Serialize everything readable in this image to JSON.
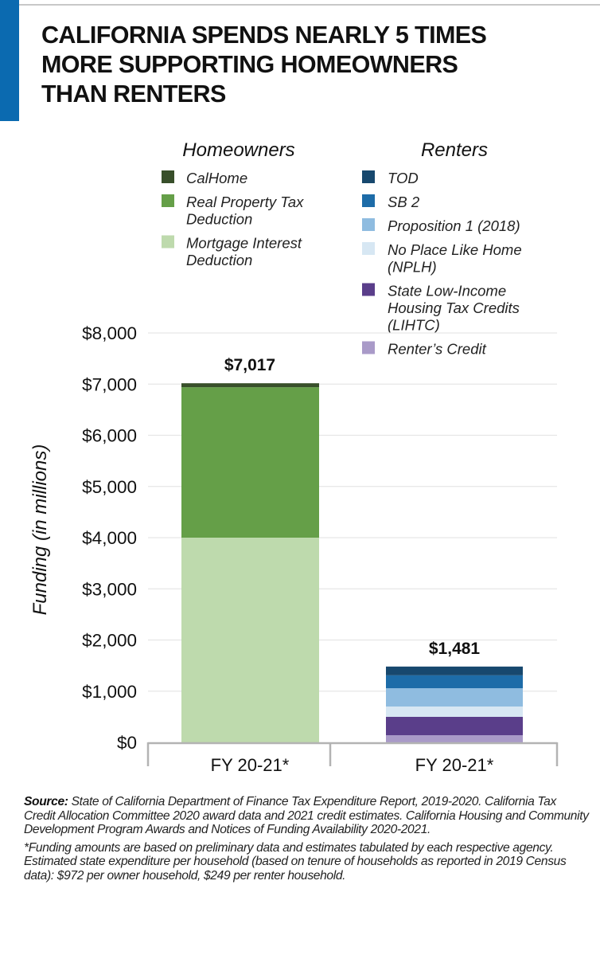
{
  "header": {
    "title_lines": [
      "CALIFORNIA SPENDS NEARLY 5 TIMES",
      "MORE SUPPORTING HOMEOWNERS",
      "THAN RENTERS"
    ],
    "accent_color": "#0b6ab0"
  },
  "chart_data": {
    "type": "bar",
    "stacked": true,
    "title": "California Spends Nearly 5 Times More Supporting Homeowners Than Renters",
    "xlabel": "",
    "ylabel": "Funding (in millions)",
    "ylim": [
      0,
      8000
    ],
    "yticks": [
      0,
      1000,
      2000,
      3000,
      4000,
      5000,
      6000,
      7000,
      8000
    ],
    "ytick_labels": [
      "$0",
      "$1,000",
      "$2,000",
      "$3,000",
      "$4,000",
      "$5,000",
      "$6,000",
      "$7,000",
      "$8,000"
    ],
    "grid": true,
    "categories": [
      "FY 20-21*",
      "FY 20-21*"
    ],
    "groups": [
      {
        "name": "Homeowners",
        "category": "FY 20-21*",
        "total": 7017,
        "total_label": "$7,017",
        "series": [
          {
            "name": "Mortgage Interest Deduction",
            "value": 4000,
            "color": "#bedaad"
          },
          {
            "name": "Real Property Tax Deduction",
            "value": 2940,
            "color": "#659f48"
          },
          {
            "name": "CalHome",
            "value": 77,
            "color": "#384f2a"
          }
        ]
      },
      {
        "name": "Renters",
        "category": "FY 20-21*",
        "total": 1481,
        "total_label": "$1,481",
        "series": [
          {
            "name": "Renter’s Credit",
            "value": 140,
            "color": "#a99ac8"
          },
          {
            "name": "State Low-Income Housing Tax Credits (LIHTC)",
            "value": 358,
            "color": "#5a3e8a"
          },
          {
            "name": "No Place Like Home (NPLH)",
            "value": 202,
            "color": "#d7e7f3"
          },
          {
            "name": "Proposition 1 (2018)",
            "value": 358,
            "color": "#8fbce0"
          },
          {
            "name": "SB 2",
            "value": 252,
            "color": "#1d6ca8"
          },
          {
            "name": "TOD",
            "value": 171,
            "color": "#17486e"
          }
        ]
      }
    ],
    "legend": {
      "placement": "top",
      "homeowners": {
        "heading": "Homeowners",
        "items": [
          {
            "lines": [
              "CalHome"
            ],
            "color": "#384f2a"
          },
          {
            "lines": [
              "Real Property Tax",
              "Deduction"
            ],
            "color": "#659f48"
          },
          {
            "lines": [
              "Mortgage Interest",
              "Deduction"
            ],
            "color": "#bedaad"
          }
        ]
      },
      "renters": {
        "heading": "Renters",
        "items": [
          {
            "lines": [
              "TOD"
            ],
            "color": "#17486e"
          },
          {
            "lines": [
              "SB 2"
            ],
            "color": "#1d6ca8"
          },
          {
            "lines": [
              "Proposition 1 (2018)"
            ],
            "color": "#8fbce0"
          },
          {
            "lines": [
              "No Place Like Home",
              "(NPLH)"
            ],
            "color": "#d7e7f3"
          },
          {
            "lines": [
              "State Low-Income",
              "Housing Tax Credits",
              "(LIHTC)"
            ],
            "color": "#5a3e8a"
          },
          {
            "lines": [
              "Renter’s Credit"
            ],
            "color": "#a99ac8"
          }
        ]
      }
    }
  },
  "notes": {
    "source_label": "Source:",
    "source_text": "State of California Department of Finance Tax Expenditure Report, 2019-2020. California Tax Credit Allocation Committee 2020 award data and 2021 credit estimates. California Housing and Community Development Program Awards and Notices of Funding Availability 2020-2021.",
    "footnote": "*Funding amounts are based on preliminary data and estimates tabulated by each respective agency. Estimated state expenditure per household (based on tenure of households as reported in 2019 Census data): $972 per owner household, $249 per renter household."
  }
}
